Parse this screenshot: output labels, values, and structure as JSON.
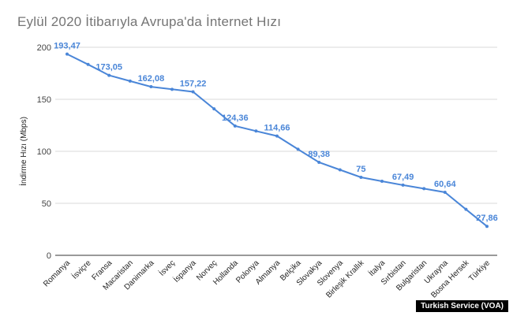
{
  "title": "Eylül 2020 İtibarıyla Avrupa'da İnternet Hızı",
  "watermark": "Turkish Service (VOA)",
  "chart_data": {
    "type": "line",
    "title": "Eylül 2020 İtibarıyla Avrupa'da İnternet Hızı",
    "xlabel": "",
    "ylabel": "İndirme Hızı (Mbps)",
    "categories": [
      "Romanya",
      "İsviçre",
      "Fransa",
      "Macaristan",
      "Danimarka",
      "İsveç",
      "İspanya",
      "Norveç",
      "Hollanda",
      "Polonya",
      "Almanya",
      "Belçika",
      "Slovakya",
      "Slovenya",
      "Birleşik Krallık",
      "İtalya",
      "Sırbistan",
      "Bulgaristan",
      "Ukrayna",
      "Bosna Hersek",
      "Türkiye"
    ],
    "values": [
      193.47,
      183.5,
      173.05,
      167.5,
      162.08,
      159.6,
      157.22,
      140.8,
      124.36,
      119.5,
      114.66,
      102.0,
      89.38,
      82.2,
      75,
      71.2,
      67.49,
      64.1,
      60.64,
      44.2,
      27.86
    ],
    "data_labels": {
      "0": "193,47",
      "2": "173,05",
      "4": "162,08",
      "6": "157,22",
      "8": "124,36",
      "10": "114,66",
      "12": "89,38",
      "14": "75",
      "16": "67,49",
      "18": "60,64",
      "20": "27,86"
    },
    "ylim": [
      0,
      200
    ],
    "yticks": [
      0,
      50,
      100,
      150,
      200
    ],
    "grid": true,
    "line_color": "#4a86d8"
  }
}
